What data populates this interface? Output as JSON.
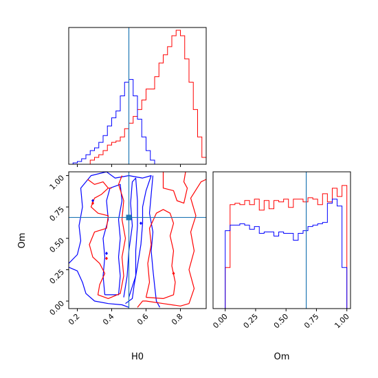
{
  "chart_data": {
    "type": "corner",
    "parameters": [
      "H0",
      "Om"
    ],
    "truths": {
      "H0": 0.5,
      "Om": 0.666
    },
    "colors": {
      "red": "#ff0000",
      "blue": "#0000ff",
      "truth": "#1f77b4",
      "axes": "#000000"
    },
    "panels": {
      "h0_marginal": {
        "xlim": [
          0.15,
          0.95
        ],
        "bin_edges": [
          0.15,
          0.175,
          0.2,
          0.225,
          0.25,
          0.275,
          0.3,
          0.325,
          0.35,
          0.375,
          0.4,
          0.425,
          0.45,
          0.475,
          0.5,
          0.525,
          0.55,
          0.575,
          0.6,
          0.625,
          0.65,
          0.675,
          0.7,
          0.725,
          0.75,
          0.775,
          0.8,
          0.825,
          0.85,
          0.875,
          0.9,
          0.925,
          0.95
        ],
        "series": [
          {
            "color": "red",
            "values": [
              0,
              0,
              0,
              0,
              0,
              0.03,
              0.05,
              0.07,
              0.1,
              0.14,
              0.16,
              0.17,
              0.2,
              0.26,
              0.3,
              0.35,
              0.4,
              0.47,
              0.55,
              0.55,
              0.64,
              0.74,
              0.8,
              0.86,
              0.94,
              0.98,
              0.94,
              0.77,
              0.6,
              0.4,
              0.2,
              0.05
            ]
          },
          {
            "color": "blue",
            "values": [
              0,
              0.01,
              0.02,
              0.04,
              0.07,
              0.1,
              0.12,
              0.16,
              0.21,
              0.28,
              0.34,
              0.39,
              0.5,
              0.6,
              0.62,
              0.5,
              0.33,
              0.2,
              0.1,
              0.03,
              0,
              0,
              0,
              0,
              0,
              0,
              0,
              0,
              0,
              0,
              0,
              0
            ]
          }
        ],
        "ticks": [
          0.2,
          0.4,
          0.6,
          0.8
        ]
      },
      "om_marginal": {
        "xlim": [
          -0.1,
          1.03
        ],
        "bin_edges": [
          0,
          0.04,
          0.08,
          0.12,
          0.16,
          0.2,
          0.24,
          0.28,
          0.32,
          0.36,
          0.4,
          0.44,
          0.48,
          0.52,
          0.56,
          0.6,
          0.64,
          0.68,
          0.72,
          0.76,
          0.8,
          0.84,
          0.88,
          0.92,
          0.96,
          1.0
        ],
        "series": [
          {
            "color": "red",
            "values": [
              0.3,
              0.76,
              0.77,
              0.76,
              0.79,
              0.76,
              0.8,
              0.72,
              0.79,
              0.73,
              0.79,
              0.78,
              0.8,
              0.74,
              0.8,
              0.8,
              0.78,
              0.81,
              0.8,
              0.76,
              0.84,
              0.78,
              0.88,
              0.82,
              0.9
            ]
          },
          {
            "color": "blue",
            "values": [
              0.57,
              0.61,
              0.61,
              0.62,
              0.61,
              0.58,
              0.6,
              0.55,
              0.56,
              0.56,
              0.53,
              0.56,
              0.55,
              0.55,
              0.5,
              0.55,
              0.57,
              0.6,
              0.61,
              0.62,
              0.63,
              0.77,
              0.8,
              0.75,
              0.3
            ]
          }
        ],
        "ticks": [
          0.0,
          0.25,
          0.5,
          0.75,
          1.0
        ],
        "tick_labels": [
          "0.00",
          "0.25",
          "0.50",
          "0.75",
          "1.00"
        ],
        "xlabel": "Om"
      },
      "joint": {
        "xlim": [
          0.15,
          0.95
        ],
        "ylim": [
          -0.06,
          1.03
        ],
        "xticks": [
          0.2,
          0.4,
          0.6,
          0.8
        ],
        "xtick_labels": [
          "0.2",
          "0.4",
          "0.6",
          "0.8"
        ],
        "yticks": [
          0.0,
          0.25,
          0.5,
          0.75,
          1.0
        ],
        "ytick_labels": [
          "0.00",
          "0.25",
          "0.50",
          "0.75",
          "1.00"
        ],
        "xlabel": "H0",
        "ylabel": "Om",
        "contours": [
          {
            "color": "blue",
            "points": [
              [
                0.15,
                0.27
              ],
              [
                0.2,
                0.24
              ],
              [
                0.23,
                0.15
              ],
              [
                0.25,
                0.06
              ],
              [
                0.3,
                0.0
              ],
              [
                0.38,
                -0.02
              ],
              [
                0.46,
                -0.03
              ],
              [
                0.5,
                -0.05
              ]
            ]
          },
          {
            "color": "blue",
            "points": [
              [
                0.15,
                0.3
              ],
              [
                0.2,
                0.37
              ],
              [
                0.22,
                0.48
              ],
              [
                0.21,
                0.6
              ],
              [
                0.23,
                0.75
              ],
              [
                0.22,
                0.9
              ],
              [
                0.28,
                1.0
              ],
              [
                0.37,
                1.03
              ],
              [
                0.42,
                0.98
              ],
              [
                0.5,
                1.0
              ],
              [
                0.58,
                0.98
              ],
              [
                0.63,
                1.0
              ],
              [
                0.6,
                0.88
              ],
              [
                0.58,
                0.75
              ],
              [
                0.58,
                0.62
              ],
              [
                0.57,
                0.45
              ],
              [
                0.55,
                0.28
              ],
              [
                0.53,
                0.12
              ],
              [
                0.52,
                0.02
              ],
              [
                0.48,
                -0.02
              ]
            ]
          },
          {
            "color": "blue",
            "points": [
              [
                0.36,
                0.05
              ],
              [
                0.35,
                0.2
              ],
              [
                0.36,
                0.35
              ],
              [
                0.35,
                0.5
              ],
              [
                0.38,
                0.65
              ],
              [
                0.37,
                0.8
              ],
              [
                0.39,
                0.9
              ],
              [
                0.45,
                0.93
              ],
              [
                0.46,
                0.8
              ],
              [
                0.44,
                0.65
              ],
              [
                0.45,
                0.5
              ],
              [
                0.44,
                0.35
              ],
              [
                0.45,
                0.2
              ],
              [
                0.44,
                0.05
              ],
              [
                0.36,
                0.05
              ]
            ]
          },
          {
            "color": "blue",
            "points": [
              [
                0.47,
                0.03
              ],
              [
                0.49,
                0.2
              ],
              [
                0.5,
                0.4
              ],
              [
                0.52,
                0.6
              ],
              [
                0.51,
                0.78
              ],
              [
                0.52,
                0.95
              ],
              [
                0.54,
                0.98
              ],
              [
                0.55,
                0.8
              ],
              [
                0.55,
                0.6
              ],
              [
                0.54,
                0.4
              ],
              [
                0.54,
                0.2
              ],
              [
                0.5,
                0.03
              ]
            ]
          },
          {
            "color": "blue",
            "points": [
              [
                0.64,
                1.0
              ],
              [
                0.63,
                0.85
              ],
              [
                0.62,
                0.7
              ],
              [
                0.64,
                0.55
              ],
              [
                0.63,
                0.4
              ],
              [
                0.64,
                0.25
              ],
              [
                0.65,
                0.12
              ],
              [
                0.66,
                0.0
              ],
              [
                0.68,
                -0.05
              ]
            ]
          },
          {
            "color": "red",
            "points": [
              [
                0.26,
                0.97
              ],
              [
                0.3,
                0.93
              ],
              [
                0.35,
                0.95
              ],
              [
                0.38,
                0.9
              ],
              [
                0.34,
                0.85
              ],
              [
                0.3,
                0.82
              ],
              [
                0.28,
                0.75
              ],
              [
                0.32,
                0.7
              ],
              [
                0.38,
                0.68
              ],
              [
                0.37,
                0.58
              ],
              [
                0.3,
                0.55
              ],
              [
                0.27,
                0.45
              ],
              [
                0.29,
                0.35
              ],
              [
                0.33,
                0.3
              ],
              [
                0.36,
                0.22
              ],
              [
                0.33,
                0.13
              ],
              [
                0.32,
                0.05
              ],
              [
                0.38,
                0.02
              ],
              [
                0.45,
                0.06
              ],
              [
                0.47,
                0.2
              ],
              [
                0.46,
                0.35
              ],
              [
                0.48,
                0.5
              ],
              [
                0.46,
                0.65
              ],
              [
                0.47,
                0.8
              ],
              [
                0.44,
                0.93
              ],
              [
                0.46,
                1.0
              ]
            ]
          },
          {
            "color": "red",
            "points": [
              [
                0.6,
                0.03
              ],
              [
                0.62,
                0.15
              ],
              [
                0.61,
                0.3
              ],
              [
                0.63,
                0.45
              ],
              [
                0.62,
                0.58
              ],
              [
                0.66,
                0.7
              ],
              [
                0.7,
                0.73
              ],
              [
                0.74,
                0.7
              ],
              [
                0.76,
                0.62
              ],
              [
                0.74,
                0.52
              ],
              [
                0.76,
                0.4
              ],
              [
                0.75,
                0.28
              ],
              [
                0.77,
                0.15
              ],
              [
                0.76,
                0.05
              ],
              [
                0.7,
                0.02
              ],
              [
                0.6,
                0.03
              ]
            ]
          },
          {
            "color": "red",
            "points": [
              [
                0.55,
                -0.05
              ],
              [
                0.58,
                0.0
              ],
              [
                0.6,
                0.0
              ],
              [
                0.7,
                -0.02
              ],
              [
                0.8,
                -0.04
              ],
              [
                0.85,
                -0.02
              ],
              [
                0.88,
                0.1
              ],
              [
                0.85,
                0.25
              ],
              [
                0.88,
                0.4
              ],
              [
                0.86,
                0.55
              ],
              [
                0.89,
                0.68
              ],
              [
                0.86,
                0.82
              ],
              [
                0.92,
                0.95
              ],
              [
                0.95,
                0.97
              ]
            ]
          },
          {
            "color": "red",
            "points": [
              [
                0.7,
                1.03
              ],
              [
                0.7,
                0.9
              ],
              [
                0.76,
                0.88
              ],
              [
                0.78,
                0.8
              ],
              [
                0.82,
                0.78
              ],
              [
                0.84,
                0.9
              ],
              [
                0.82,
                0.95
              ],
              [
                0.83,
                1.03
              ]
            ]
          },
          {
            "color": "red",
            "points": [
              [
                0.38,
                0.9
              ],
              [
                0.4,
                0.9
              ]
            ]
          }
        ],
        "dots": [
          {
            "color": "blue",
            "x": 0.29,
            "y": 0.8
          },
          {
            "color": "blue",
            "x": 0.37,
            "y": 0.38
          },
          {
            "color": "blue",
            "x": 0.57,
            "y": 0.62
          },
          {
            "color": "red",
            "x": 0.29,
            "y": 0.78
          },
          {
            "color": "red",
            "x": 0.37,
            "y": 0.34
          },
          {
            "color": "red",
            "x": 0.76,
            "y": 0.22
          }
        ]
      }
    }
  }
}
